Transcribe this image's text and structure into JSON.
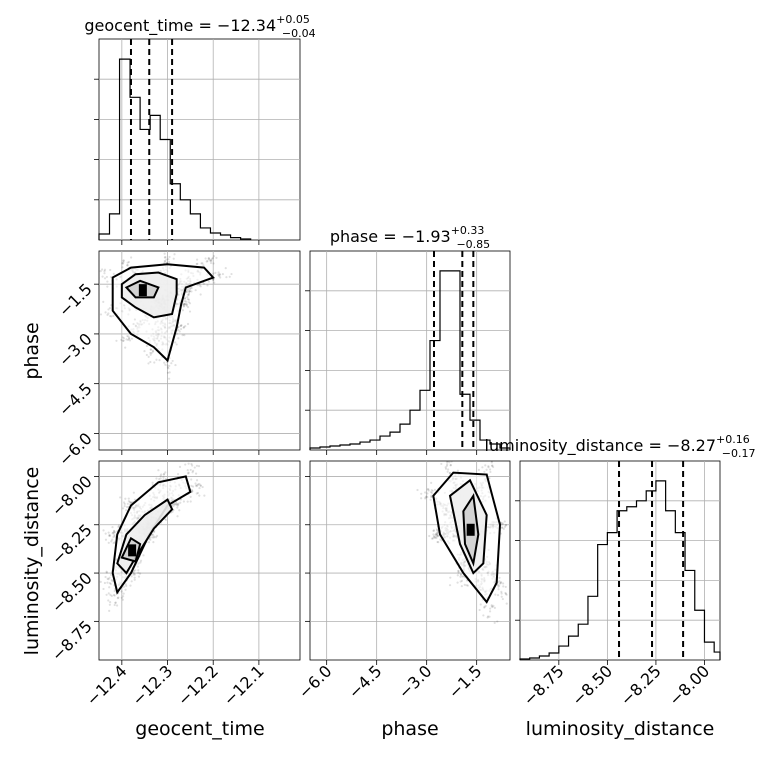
{
  "chart_data": {
    "type": "corner",
    "parameters": [
      "geocent_time",
      "phase",
      "luminosity_distance"
    ],
    "titles": {
      "geocent_time": {
        "label": "geocent_time",
        "median": "−12.34",
        "plus": "+0.05",
        "minus": "−0.04"
      },
      "phase": {
        "label": "phase",
        "median": "−1.93",
        "plus": "+0.33",
        "minus": "−0.85"
      },
      "luminosity_distance": {
        "label": "luminosity_distance",
        "median": "−8.27",
        "plus": "+0.16",
        "minus": "−0.17"
      }
    },
    "ranges": {
      "geocent_time": [
        -12.45,
        -12.01
      ],
      "phase": [
        -6.5,
        -0.5
      ],
      "luminosity_distance": [
        -8.95,
        -7.92
      ]
    },
    "ticks": {
      "geocent_time": [
        -12.4,
        -12.3,
        -12.2,
        -12.1
      ],
      "phase": [
        -6.0,
        -4.5,
        -3.0,
        -1.5
      ],
      "luminosity_distance": [
        -8.75,
        -8.5,
        -8.25,
        -8.0
      ]
    },
    "tick_labels": {
      "geocent_time": [
        "−12.4",
        "−12.3",
        "−12.2",
        "−12.1"
      ],
      "phase": [
        "−6.0",
        "−4.5",
        "−3.0",
        "−1.5"
      ],
      "luminosity_distance": [
        "−8.75",
        "−8.50",
        "−8.25",
        "−8.00"
      ]
    },
    "quantiles": {
      "geocent_time": [
        -12.38,
        -12.34,
        -12.29
      ],
      "phase": [
        -2.78,
        -1.93,
        -1.6
      ],
      "luminosity_distance": [
        -8.44,
        -8.27,
        -8.11
      ]
    },
    "histograms": {
      "geocent_time": {
        "edges": [
          -12.45,
          -12.427,
          -12.405,
          -12.393,
          -12.382,
          -12.36,
          -12.338,
          -12.316,
          -12.294,
          -12.272,
          -12.25,
          -12.228,
          -12.206,
          -12.184,
          -12.162,
          -12.14,
          -12.118
        ],
        "counts": [
          0.03,
          0.13,
          0.9,
          0.9,
          0.71,
          0.55,
          0.62,
          0.5,
          0.28,
          0.2,
          0.13,
          0.06,
          0.035,
          0.025,
          0.012,
          0.005
        ]
      },
      "phase": {
        "edges": [
          -6.5,
          -6.2,
          -5.9,
          -5.6,
          -5.3,
          -5.0,
          -4.7,
          -4.4,
          -4.1,
          -3.8,
          -3.5,
          -3.2,
          -2.9,
          -2.6,
          -2.3,
          -2.0,
          -1.7,
          -1.4,
          -1.1,
          -0.8,
          -0.5
        ],
        "counts": [
          0.01,
          0.015,
          0.02,
          0.025,
          0.03,
          0.04,
          0.05,
          0.07,
          0.09,
          0.13,
          0.2,
          0.3,
          0.55,
          0.9,
          0.9,
          0.28,
          0.15,
          0.05,
          0.03,
          0.01
        ]
      },
      "luminosity_distance": {
        "edges": [
          -8.95,
          -8.9,
          -8.85,
          -8.8,
          -8.75,
          -8.7,
          -8.65,
          -8.6,
          -8.55,
          -8.5,
          -8.45,
          -8.4,
          -8.35,
          -8.3,
          -8.25,
          -8.2,
          -8.15,
          -8.1,
          -8.05,
          -8.0,
          -7.95,
          -7.92
        ],
        "counts": [
          0.005,
          0.01,
          0.02,
          0.035,
          0.07,
          0.12,
          0.18,
          0.32,
          0.58,
          0.64,
          0.75,
          0.77,
          0.8,
          0.85,
          0.9,
          0.75,
          0.64,
          0.45,
          0.25,
          0.09,
          0.04
        ]
      }
    },
    "contours": [
      {
        "x": "geocent_time",
        "y": "phase",
        "levels": [
          [
            [
              -12.42,
              -1.3
            ],
            [
              -12.38,
              -1.0
            ],
            [
              -12.3,
              -0.9
            ],
            [
              -12.22,
              -1.0
            ],
            [
              -12.2,
              -1.3
            ],
            [
              -12.26,
              -1.6
            ],
            [
              -12.27,
              -2.1
            ],
            [
              -12.28,
              -2.8
            ],
            [
              -12.3,
              -3.8
            ],
            [
              -12.33,
              -3.4
            ],
            [
              -12.38,
              -3.0
            ],
            [
              -12.42,
              -2.3
            ]
          ],
          [
            [
              -12.4,
              -1.5
            ],
            [
              -12.37,
              -1.2
            ],
            [
              -12.32,
              -1.15
            ],
            [
              -12.28,
              -1.35
            ],
            [
              -12.28,
              -1.8
            ],
            [
              -12.29,
              -2.4
            ],
            [
              -12.33,
              -2.5
            ],
            [
              -12.37,
              -2.2
            ],
            [
              -12.4,
              -1.9
            ]
          ],
          [
            [
              -12.39,
              -1.6
            ],
            [
              -12.36,
              -1.4
            ],
            [
              -12.32,
              -1.6
            ],
            [
              -12.33,
              -1.9
            ],
            [
              -12.37,
              -1.9
            ]
          ]
        ]
      },
      {
        "x": "geocent_time",
        "y": "luminosity_distance",
        "levels": [
          [
            [
              -12.42,
              -8.5
            ],
            [
              -12.41,
              -8.3
            ],
            [
              -12.38,
              -8.15
            ],
            [
              -12.32,
              -8.03
            ],
            [
              -12.26,
              -8.0
            ],
            [
              -12.25,
              -8.08
            ],
            [
              -12.3,
              -8.15
            ],
            [
              -12.34,
              -8.3
            ],
            [
              -12.38,
              -8.5
            ],
            [
              -12.41,
              -8.6
            ]
          ],
          [
            [
              -12.41,
              -8.45
            ],
            [
              -12.39,
              -8.3
            ],
            [
              -12.35,
              -8.2
            ],
            [
              -12.3,
              -8.12
            ],
            [
              -12.29,
              -8.17
            ],
            [
              -12.33,
              -8.27
            ],
            [
              -12.37,
              -8.42
            ],
            [
              -12.39,
              -8.5
            ]
          ],
          [
            [
              -12.4,
              -8.42
            ],
            [
              -12.38,
              -8.32
            ],
            [
              -12.36,
              -8.35
            ],
            [
              -12.37,
              -8.44
            ]
          ]
        ]
      },
      {
        "x": "phase",
        "y": "luminosity_distance",
        "levels": [
          [
            [
              -2.8,
              -8.1
            ],
            [
              -2.2,
              -7.98
            ],
            [
              -1.2,
              -7.99
            ],
            [
              -0.8,
              -8.25
            ],
            [
              -0.9,
              -8.55
            ],
            [
              -1.2,
              -8.65
            ],
            [
              -1.9,
              -8.5
            ],
            [
              -2.6,
              -8.3
            ]
          ],
          [
            [
              -2.3,
              -8.1
            ],
            [
              -1.7,
              -8.02
            ],
            [
              -1.2,
              -8.2
            ],
            [
              -1.3,
              -8.45
            ],
            [
              -1.6,
              -8.5
            ],
            [
              -2.0,
              -8.35
            ]
          ],
          [
            [
              -1.9,
              -8.18
            ],
            [
              -1.6,
              -8.1
            ],
            [
              -1.45,
              -8.3
            ],
            [
              -1.6,
              -8.45
            ],
            [
              -1.85,
              -8.35
            ]
          ]
        ]
      }
    ]
  }
}
